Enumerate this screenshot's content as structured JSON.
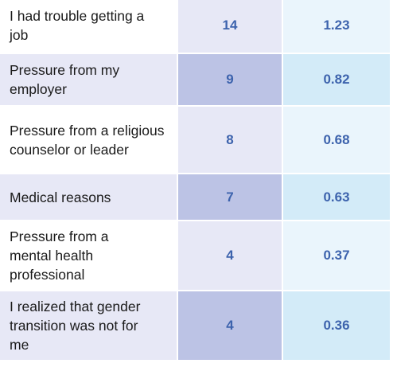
{
  "table": {
    "rows": [
      {
        "reason": "I had trouble getting a job",
        "count": "14",
        "percent": "1.23"
      },
      {
        "reason": "Pressure from my employer",
        "count": "9",
        "percent": "0.82"
      },
      {
        "reason": "Pressure from a religious counselor or leader",
        "count": "8",
        "percent": "0.68"
      },
      {
        "reason": "Medical reasons",
        "count": "7",
        "percent": "0.63"
      },
      {
        "reason": "Pressure from a mental health professional",
        "count": "4",
        "percent": "0.37"
      },
      {
        "reason": "I realized that gender transition was not for me",
        "count": "4",
        "percent": "0.36"
      }
    ]
  }
}
